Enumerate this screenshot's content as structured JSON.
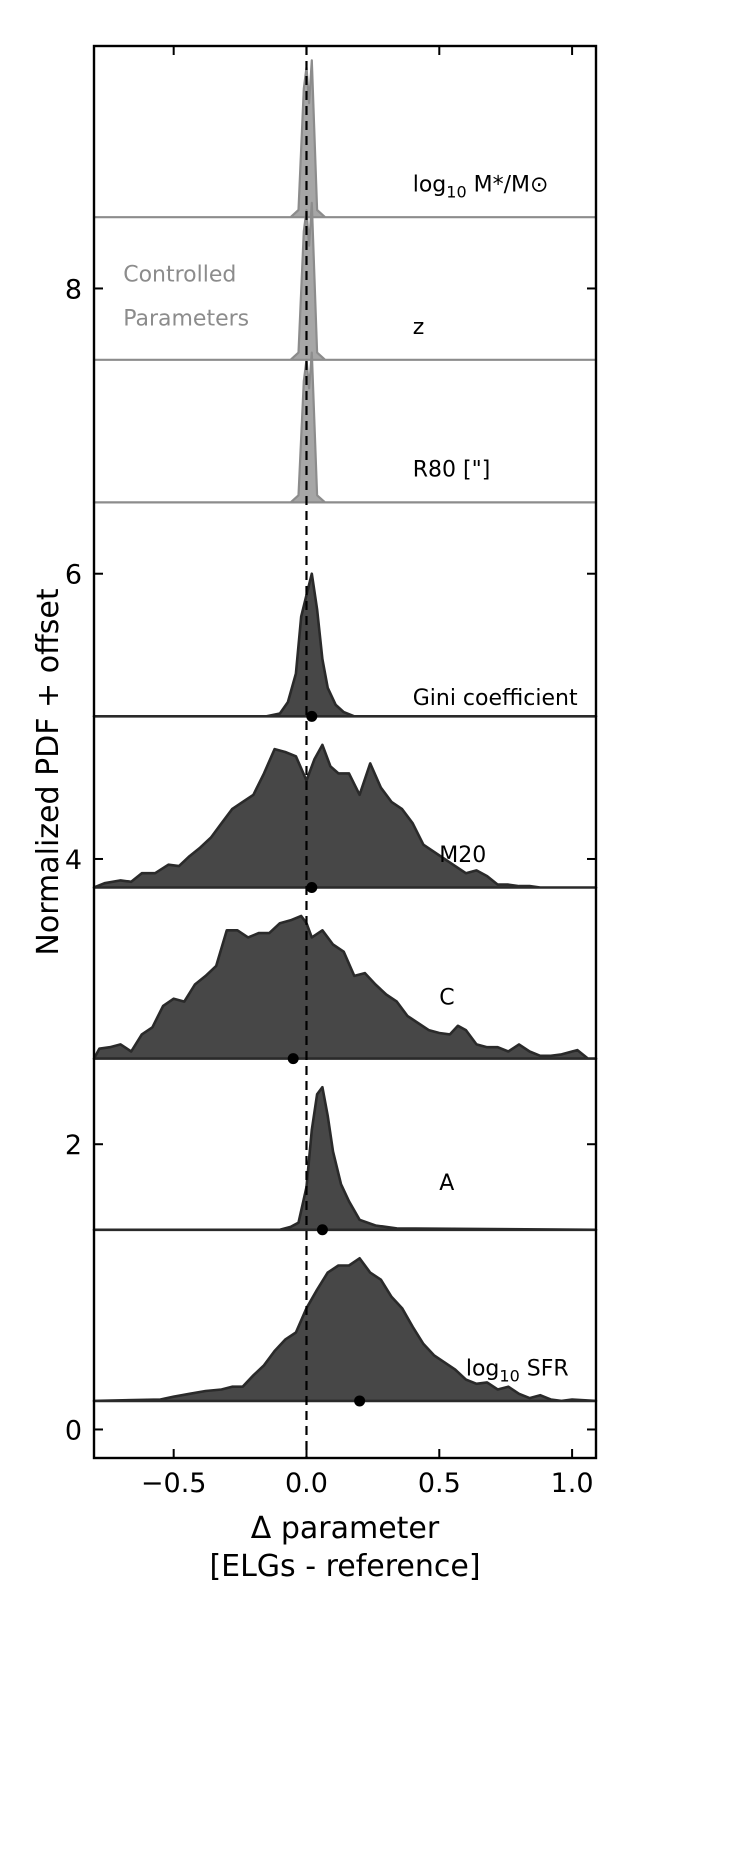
{
  "chart_data": {
    "type": "area",
    "title": "",
    "xlabel": "Δ parameter",
    "xlabel_line2": "[ELGs - reference]",
    "ylabel": "Normalized PDF + offset",
    "xlim": [
      -0.8,
      1.09
    ],
    "ylim": [
      -0.2,
      9.7
    ],
    "xticks": [
      -0.5,
      0.0,
      0.5,
      1.0
    ],
    "xtick_labels": [
      "−0.5",
      "0.0",
      "0.5",
      "1.0"
    ],
    "yticks": [
      0,
      2,
      4,
      6,
      8
    ],
    "ytick_labels": [
      "0",
      "2",
      "4",
      "6",
      "8"
    ],
    "reference_line_x": 0.0,
    "annotations": [
      {
        "text": "Controlled",
        "x": -0.69,
        "y": 8.05
      },
      {
        "text": "Parameters",
        "x": -0.69,
        "y": 7.74
      }
    ],
    "series": [
      {
        "name": "log10 M*/M⊙",
        "label_main": "log",
        "label_sub": "10",
        "label_tail": " M*/M⊙",
        "label_x": 0.4,
        "label_y": 8.68,
        "offset": 8.5,
        "style": "controlled",
        "color": "#a6a6a6",
        "x": [
          -0.8,
          -0.06,
          -0.03,
          -0.01,
          0.0,
          0.01,
          0.02,
          0.04,
          0.07,
          1.09
        ],
        "y": [
          8.5,
          8.5,
          8.55,
          9.4,
          9.55,
          9.3,
          9.6,
          8.55,
          8.5,
          8.5
        ]
      },
      {
        "name": "z",
        "label_main": "z",
        "label_sub": "",
        "label_tail": "",
        "label_x": 0.4,
        "label_y": 7.68,
        "offset": 7.5,
        "style": "controlled",
        "color": "#a6a6a6",
        "x": [
          -0.8,
          -0.06,
          -0.03,
          -0.01,
          0.0,
          0.01,
          0.02,
          0.04,
          0.07,
          1.09
        ],
        "y": [
          7.5,
          7.5,
          7.55,
          8.4,
          8.55,
          8.3,
          8.6,
          7.55,
          7.5,
          7.5
        ]
      },
      {
        "name": "R80 [\"]",
        "label_main": "R80 [\"]",
        "label_sub": "",
        "label_tail": "",
        "label_x": 0.4,
        "label_y": 6.68,
        "offset": 6.5,
        "style": "controlled",
        "color": "#a6a6a6",
        "x": [
          -0.8,
          -0.06,
          -0.03,
          -0.01,
          0.0,
          0.01,
          0.02,
          0.04,
          0.07,
          1.09
        ],
        "y": [
          6.5,
          6.5,
          6.55,
          7.35,
          7.5,
          7.3,
          7.55,
          6.55,
          6.5,
          6.5
        ]
      },
      {
        "name": "Gini coefficient",
        "label_main": "Gini coefficient",
        "label_sub": "",
        "label_tail": "",
        "label_x": 0.4,
        "label_y": 5.08,
        "offset": 5.0,
        "style": "measured",
        "color": "#474747",
        "median": 0.02,
        "x": [
          -0.8,
          -0.15,
          -0.1,
          -0.07,
          -0.04,
          -0.02,
          0.0,
          0.02,
          0.04,
          0.06,
          0.08,
          0.11,
          0.14,
          0.18,
          1.09
        ],
        "y": [
          5.0,
          5.0,
          5.02,
          5.1,
          5.3,
          5.7,
          5.85,
          6.0,
          5.75,
          5.4,
          5.2,
          5.08,
          5.03,
          5.0,
          5.0
        ]
      },
      {
        "name": "M20",
        "label_main": "M20",
        "label_sub": "",
        "label_tail": "",
        "label_x": 0.5,
        "label_y": 3.98,
        "offset": 3.8,
        "style": "measured",
        "color": "#474747",
        "median": 0.02,
        "x": [
          -0.8,
          -0.76,
          -0.7,
          -0.66,
          -0.62,
          -0.57,
          -0.52,
          -0.48,
          -0.44,
          -0.4,
          -0.36,
          -0.32,
          -0.28,
          -0.24,
          -0.2,
          -0.16,
          -0.12,
          -0.08,
          -0.04,
          0.0,
          0.03,
          0.06,
          0.09,
          0.12,
          0.16,
          0.2,
          0.24,
          0.28,
          0.32,
          0.36,
          0.4,
          0.44,
          0.48,
          0.52,
          0.56,
          0.6,
          0.64,
          0.68,
          0.72,
          0.76,
          0.8,
          0.84,
          0.88,
          0.92,
          1.0,
          1.09
        ],
        "y": [
          3.8,
          3.83,
          3.85,
          3.84,
          3.9,
          3.9,
          3.96,
          3.95,
          4.02,
          4.08,
          4.15,
          4.25,
          4.35,
          4.4,
          4.45,
          4.6,
          4.77,
          4.75,
          4.72,
          4.55,
          4.7,
          4.8,
          4.65,
          4.6,
          4.6,
          4.45,
          4.67,
          4.5,
          4.4,
          4.35,
          4.25,
          4.1,
          4.05,
          4.0,
          3.95,
          3.9,
          3.92,
          3.88,
          3.82,
          3.82,
          3.81,
          3.81,
          3.8,
          3.8,
          3.8,
          3.8
        ]
      },
      {
        "name": "C",
        "label_main": "C",
        "label_sub": "",
        "label_tail": "",
        "label_x": 0.5,
        "label_y": 2.98,
        "offset": 2.6,
        "style": "measured",
        "color": "#474747",
        "median": -0.05,
        "x": [
          -0.8,
          -0.78,
          -0.74,
          -0.7,
          -0.66,
          -0.62,
          -0.58,
          -0.54,
          -0.5,
          -0.46,
          -0.42,
          -0.38,
          -0.34,
          -0.3,
          -0.26,
          -0.22,
          -0.18,
          -0.14,
          -0.1,
          -0.06,
          -0.02,
          0.0,
          0.02,
          0.06,
          0.1,
          0.14,
          0.18,
          0.22,
          0.26,
          0.3,
          0.34,
          0.38,
          0.42,
          0.46,
          0.5,
          0.54,
          0.57,
          0.6,
          0.64,
          0.68,
          0.72,
          0.76,
          0.8,
          0.84,
          0.88,
          0.92,
          0.96,
          1.0,
          1.02,
          1.06,
          1.09
        ],
        "y": [
          2.6,
          2.67,
          2.68,
          2.7,
          2.65,
          2.77,
          2.82,
          2.97,
          3.02,
          3.0,
          3.12,
          3.18,
          3.25,
          3.5,
          3.5,
          3.45,
          3.48,
          3.48,
          3.55,
          3.57,
          3.6,
          3.55,
          3.45,
          3.5,
          3.4,
          3.35,
          3.18,
          3.2,
          3.12,
          3.05,
          3.0,
          2.9,
          2.85,
          2.8,
          2.78,
          2.77,
          2.83,
          2.8,
          2.7,
          2.68,
          2.68,
          2.65,
          2.7,
          2.65,
          2.62,
          2.62,
          2.63,
          2.65,
          2.66,
          2.6,
          2.6
        ]
      },
      {
        "name": "A",
        "label_main": "A",
        "label_sub": "",
        "label_tail": "",
        "label_x": 0.5,
        "label_y": 1.68,
        "offset": 1.4,
        "style": "measured",
        "color": "#474747",
        "median": 0.06,
        "x": [
          -0.8,
          -0.1,
          -0.06,
          -0.03,
          0.0,
          0.02,
          0.04,
          0.06,
          0.08,
          0.1,
          0.13,
          0.16,
          0.2,
          0.26,
          0.34,
          1.09
        ],
        "y": [
          1.4,
          1.4,
          1.42,
          1.45,
          1.7,
          2.1,
          2.35,
          2.4,
          2.2,
          1.95,
          1.72,
          1.6,
          1.47,
          1.43,
          1.41,
          1.4
        ]
      },
      {
        "name": "log10 SFR",
        "label_main": "log",
        "label_sub": "10",
        "label_tail": " SFR",
        "label_x": 0.6,
        "label_y": 0.38,
        "offset": 0.2,
        "style": "measured",
        "color": "#474747",
        "median": 0.2,
        "x": [
          -0.8,
          -0.55,
          -0.5,
          -0.44,
          -0.38,
          -0.32,
          -0.28,
          -0.24,
          -0.2,
          -0.16,
          -0.12,
          -0.08,
          -0.04,
          0.0,
          0.04,
          0.08,
          0.12,
          0.16,
          0.2,
          0.24,
          0.28,
          0.32,
          0.36,
          0.4,
          0.44,
          0.48,
          0.52,
          0.56,
          0.6,
          0.64,
          0.68,
          0.72,
          0.76,
          0.8,
          0.84,
          0.88,
          0.92,
          0.96,
          1.0,
          1.09
        ],
        "y": [
          0.2,
          0.21,
          0.23,
          0.25,
          0.27,
          0.28,
          0.3,
          0.3,
          0.38,
          0.45,
          0.55,
          0.63,
          0.68,
          0.85,
          0.98,
          1.1,
          1.15,
          1.15,
          1.2,
          1.1,
          1.05,
          0.93,
          0.85,
          0.72,
          0.6,
          0.52,
          0.47,
          0.42,
          0.35,
          0.32,
          0.33,
          0.28,
          0.3,
          0.25,
          0.22,
          0.24,
          0.21,
          0.2,
          0.21,
          0.2
        ]
      }
    ]
  }
}
